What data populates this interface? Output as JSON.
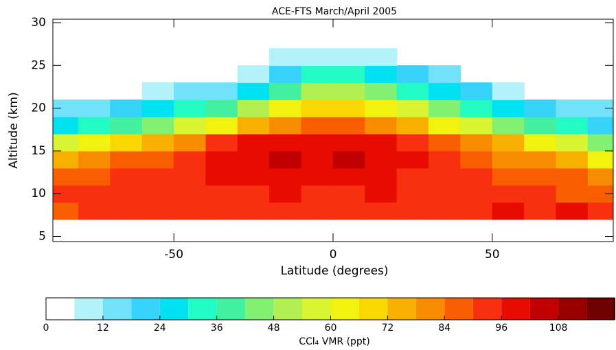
{
  "chart_data": {
    "type": "contour",
    "title": "ACE-FTS March/April 2005",
    "x_label": "Latitude (degrees)",
    "y_label": "Altitude (km)",
    "x": [
      -85,
      -75,
      -65,
      -55,
      -45,
      -35,
      -25,
      -15,
      -5,
      5,
      15,
      25,
      35,
      45,
      55,
      65,
      75,
      85
    ],
    "y": [
      8,
      10,
      12,
      14,
      16,
      18,
      20,
      22,
      24,
      26
    ],
    "z": [
      [
        88,
        90,
        90,
        90,
        92,
        90,
        92,
        90,
        92,
        90,
        92,
        94,
        90,
        92,
        96,
        92,
        96,
        92
      ],
      [
        90,
        92,
        92,
        94,
        90,
        92,
        94,
        96,
        92,
        94,
        96,
        92,
        90,
        94,
        92,
        90,
        88,
        88
      ],
      [
        85,
        88,
        90,
        92,
        94,
        96,
        96,
        98,
        96,
        98,
        96,
        94,
        92,
        90,
        88,
        86,
        84,
        80
      ],
      [
        75,
        78,
        84,
        88,
        92,
        96,
        100,
        102,
        100,
        102,
        100,
        98,
        92,
        88,
        82,
        78,
        72,
        65
      ],
      [
        55,
        62,
        70,
        75,
        82,
        90,
        96,
        98,
        100,
        100,
        98,
        95,
        88,
        80,
        72,
        65,
        55,
        45
      ],
      [
        25,
        30,
        38,
        45,
        55,
        65,
        75,
        82,
        85,
        85,
        82,
        75,
        65,
        55,
        45,
        38,
        30,
        20
      ],
      [
        12,
        15,
        20,
        25,
        30,
        38,
        50,
        62,
        68,
        68,
        62,
        55,
        45,
        35,
        25,
        20,
        15,
        12
      ],
      [
        null,
        null,
        null,
        10,
        12,
        16,
        28,
        40,
        52,
        50,
        45,
        35,
        25,
        18,
        10,
        null,
        null,
        null
      ],
      [
        null,
        null,
        null,
        null,
        null,
        null,
        10,
        20,
        32,
        30,
        24,
        18,
        12,
        null,
        null,
        null,
        null,
        null
      ],
      [
        null,
        null,
        null,
        null,
        null,
        null,
        null,
        8,
        10,
        10,
        8,
        null,
        null,
        null,
        null,
        null,
        null,
        null
      ]
    ],
    "xlim": [
      -88,
      88
    ],
    "ylim": [
      4.4,
      30.4
    ],
    "xticks": [
      -50,
      0,
      50
    ],
    "yticks": [
      5,
      10,
      15,
      20,
      25,
      30
    ],
    "colorbar": {
      "label": "CCl₄ VMR (ppt)",
      "levels": [
        0,
        6,
        12,
        18,
        24,
        30,
        36,
        42,
        48,
        54,
        60,
        66,
        72,
        78,
        84,
        90,
        96,
        102,
        108,
        114,
        120
      ],
      "colors": [
        "#ffffff",
        "#b4f2fa",
        "#72e2fa",
        "#36d2fa",
        "#00e2f2",
        "#22fcc4",
        "#44f0a0",
        "#82f070",
        "#b2f052",
        "#d8f432",
        "#f2f210",
        "#f8d800",
        "#f8b000",
        "#f88c00",
        "#f85e00",
        "#f83010",
        "#e80c00",
        "#c00000",
        "#980000",
        "#700000"
      ],
      "ticks": [
        0,
        12,
        24,
        36,
        48,
        60,
        72,
        84,
        96,
        108
      ]
    }
  }
}
